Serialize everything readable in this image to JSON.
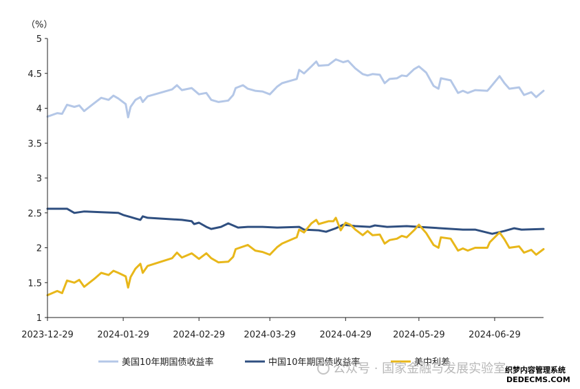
{
  "chart_data": {
    "type": "line",
    "title": "",
    "xlabel": "",
    "ylabel": "",
    "unit_label": "（%）",
    "ylim": [
      1,
      5
    ],
    "yticks": [
      "1",
      "1.5",
      "2",
      "2.5",
      "3",
      "3.5",
      "4",
      "4.5",
      "5"
    ],
    "x_range": [
      "2023-12-29",
      "2024-07-19"
    ],
    "xticks": [
      "2023-12-29",
      "2024-01-29",
      "2024-02-29",
      "2024-03-29",
      "2024-04-29",
      "2024-05-29",
      "2024-06-29"
    ],
    "grid": false,
    "legend_position": "bottom",
    "series": [
      {
        "name": "美国10年期国债收益率",
        "color": "#b4c7e7",
        "points": [
          [
            "2023-12-29",
            3.88
          ],
          [
            "2024-01-02",
            3.93
          ],
          [
            "2024-01-04",
            3.92
          ],
          [
            "2024-01-06",
            4.05
          ],
          [
            "2024-01-09",
            4.02
          ],
          [
            "2024-01-11",
            4.04
          ],
          [
            "2024-01-13",
            3.96
          ],
          [
            "2024-01-17",
            4.07
          ],
          [
            "2024-01-20",
            4.15
          ],
          [
            "2024-01-23",
            4.12
          ],
          [
            "2024-01-25",
            4.18
          ],
          [
            "2024-01-27",
            4.14
          ],
          [
            "2024-01-30",
            4.06
          ],
          [
            "2024-01-31",
            3.87
          ],
          [
            "2024-02-01",
            4.02
          ],
          [
            "2024-02-03",
            4.12
          ],
          [
            "2024-02-05",
            4.16
          ],
          [
            "2024-02-06",
            4.09
          ],
          [
            "2024-02-08",
            4.17
          ],
          [
            "2024-02-12",
            4.21
          ],
          [
            "2024-02-18",
            4.27
          ],
          [
            "2024-02-20",
            4.33
          ],
          [
            "2024-02-22",
            4.26
          ],
          [
            "2024-02-26",
            4.29
          ],
          [
            "2024-02-29",
            4.2
          ],
          [
            "2024-03-03",
            4.22
          ],
          [
            "2024-03-05",
            4.12
          ],
          [
            "2024-03-08",
            4.09
          ],
          [
            "2024-03-12",
            4.11
          ],
          [
            "2024-03-14",
            4.19
          ],
          [
            "2024-03-15",
            4.29
          ],
          [
            "2024-03-18",
            4.33
          ],
          [
            "2024-03-20",
            4.28
          ],
          [
            "2024-03-23",
            4.25
          ],
          [
            "2024-03-26",
            4.24
          ],
          [
            "2024-03-29",
            4.2
          ],
          [
            "2024-04-01",
            4.31
          ],
          [
            "2024-04-03",
            4.36
          ],
          [
            "2024-04-07",
            4.4
          ],
          [
            "2024-04-09",
            4.42
          ],
          [
            "2024-04-10",
            4.55
          ],
          [
            "2024-04-12",
            4.5
          ],
          [
            "2024-04-15",
            4.6
          ],
          [
            "2024-04-17",
            4.67
          ],
          [
            "2024-04-18",
            4.61
          ],
          [
            "2024-04-22",
            4.62
          ],
          [
            "2024-04-25",
            4.7
          ],
          [
            "2024-04-28",
            4.66
          ],
          [
            "2024-04-30",
            4.68
          ],
          [
            "2024-05-03",
            4.57
          ],
          [
            "2024-05-06",
            4.49
          ],
          [
            "2024-05-08",
            4.47
          ],
          [
            "2024-05-10",
            4.49
          ],
          [
            "2024-05-13",
            4.48
          ],
          [
            "2024-05-15",
            4.36
          ],
          [
            "2024-05-17",
            4.42
          ],
          [
            "2024-05-20",
            4.43
          ],
          [
            "2024-05-22",
            4.47
          ],
          [
            "2024-05-24",
            4.46
          ],
          [
            "2024-05-27",
            4.56
          ],
          [
            "2024-05-29",
            4.6
          ],
          [
            "2024-06-01",
            4.51
          ],
          [
            "2024-06-04",
            4.32
          ],
          [
            "2024-06-06",
            4.28
          ],
          [
            "2024-06-07",
            4.43
          ],
          [
            "2024-06-11",
            4.4
          ],
          [
            "2024-06-14",
            4.22
          ],
          [
            "2024-06-16",
            4.25
          ],
          [
            "2024-06-18",
            4.22
          ],
          [
            "2024-06-21",
            4.26
          ],
          [
            "2024-06-26",
            4.25
          ],
          [
            "2024-06-27",
            4.29
          ],
          [
            "2024-07-01",
            4.46
          ],
          [
            "2024-07-03",
            4.36
          ],
          [
            "2024-07-05",
            4.28
          ],
          [
            "2024-07-09",
            4.3
          ],
          [
            "2024-07-11",
            4.19
          ],
          [
            "2024-07-14",
            4.23
          ],
          [
            "2024-07-16",
            4.16
          ],
          [
            "2024-07-19",
            4.25
          ]
        ]
      },
      {
        "name": "中国10年期国债收益率",
        "color": "#2f4f80",
        "points": [
          [
            "2023-12-29",
            2.56
          ],
          [
            "2024-01-06",
            2.56
          ],
          [
            "2024-01-09",
            2.5
          ],
          [
            "2024-01-13",
            2.52
          ],
          [
            "2024-01-20",
            2.51
          ],
          [
            "2024-01-27",
            2.5
          ],
          [
            "2024-01-29",
            2.47
          ],
          [
            "2024-02-01",
            2.44
          ],
          [
            "2024-02-03",
            2.42
          ],
          [
            "2024-02-05",
            2.4
          ],
          [
            "2024-02-06",
            2.45
          ],
          [
            "2024-02-08",
            2.43
          ],
          [
            "2024-02-22",
            2.4
          ],
          [
            "2024-02-26",
            2.38
          ],
          [
            "2024-02-27",
            2.34
          ],
          [
            "2024-02-29",
            2.36
          ],
          [
            "2024-03-03",
            2.3
          ],
          [
            "2024-03-05",
            2.27
          ],
          [
            "2024-03-09",
            2.3
          ],
          [
            "2024-03-12",
            2.35
          ],
          [
            "2024-03-16",
            2.29
          ],
          [
            "2024-03-20",
            2.3
          ],
          [
            "2024-03-26",
            2.3
          ],
          [
            "2024-04-01",
            2.29
          ],
          [
            "2024-04-10",
            2.3
          ],
          [
            "2024-04-12",
            2.26
          ],
          [
            "2024-04-18",
            2.25
          ],
          [
            "2024-04-21",
            2.23
          ],
          [
            "2024-04-25",
            2.28
          ],
          [
            "2024-04-28",
            2.33
          ],
          [
            "2024-05-03",
            2.31
          ],
          [
            "2024-05-09",
            2.3
          ],
          [
            "2024-05-11",
            2.32
          ],
          [
            "2024-05-16",
            2.3
          ],
          [
            "2024-05-24",
            2.31
          ],
          [
            "2024-05-29",
            2.3
          ],
          [
            "2024-06-07",
            2.28
          ],
          [
            "2024-06-16",
            2.26
          ],
          [
            "2024-06-21",
            2.26
          ],
          [
            "2024-06-28",
            2.2
          ],
          [
            "2024-07-03",
            2.24
          ],
          [
            "2024-07-07",
            2.28
          ],
          [
            "2024-07-10",
            2.26
          ],
          [
            "2024-07-19",
            2.27
          ]
        ]
      },
      {
        "name": "美中利差",
        "color": "#e8b71a",
        "points": [
          [
            "2023-12-29",
            1.32
          ],
          [
            "2024-01-02",
            1.38
          ],
          [
            "2024-01-04",
            1.35
          ],
          [
            "2024-01-06",
            1.53
          ],
          [
            "2024-01-09",
            1.5
          ],
          [
            "2024-01-11",
            1.54
          ],
          [
            "2024-01-13",
            1.44
          ],
          [
            "2024-01-17",
            1.55
          ],
          [
            "2024-01-20",
            1.64
          ],
          [
            "2024-01-23",
            1.61
          ],
          [
            "2024-01-25",
            1.67
          ],
          [
            "2024-01-27",
            1.64
          ],
          [
            "2024-01-30",
            1.59
          ],
          [
            "2024-01-31",
            1.43
          ],
          [
            "2024-02-01",
            1.58
          ],
          [
            "2024-02-03",
            1.7
          ],
          [
            "2024-02-05",
            1.77
          ],
          [
            "2024-02-06",
            1.64
          ],
          [
            "2024-02-08",
            1.74
          ],
          [
            "2024-02-18",
            1.85
          ],
          [
            "2024-02-20",
            1.93
          ],
          [
            "2024-02-22",
            1.86
          ],
          [
            "2024-02-26",
            1.92
          ],
          [
            "2024-02-29",
            1.84
          ],
          [
            "2024-03-03",
            1.92
          ],
          [
            "2024-03-05",
            1.85
          ],
          [
            "2024-03-08",
            1.79
          ],
          [
            "2024-03-12",
            1.8
          ],
          [
            "2024-03-14",
            1.87
          ],
          [
            "2024-03-15",
            1.98
          ],
          [
            "2024-03-20",
            2.04
          ],
          [
            "2024-03-23",
            1.96
          ],
          [
            "2024-03-26",
            1.94
          ],
          [
            "2024-03-29",
            1.9
          ],
          [
            "2024-04-01",
            2.01
          ],
          [
            "2024-04-03",
            2.06
          ],
          [
            "2024-04-07",
            2.12
          ],
          [
            "2024-04-09",
            2.15
          ],
          [
            "2024-04-10",
            2.26
          ],
          [
            "2024-04-12",
            2.22
          ],
          [
            "2024-04-15",
            2.35
          ],
          [
            "2024-04-17",
            2.4
          ],
          [
            "2024-04-18",
            2.34
          ],
          [
            "2024-04-22",
            2.38
          ],
          [
            "2024-04-24",
            2.38
          ],
          [
            "2024-04-25",
            2.43
          ],
          [
            "2024-04-27",
            2.25
          ],
          [
            "2024-04-29",
            2.36
          ],
          [
            "2024-05-01",
            2.33
          ],
          [
            "2024-05-03",
            2.26
          ],
          [
            "2024-05-06",
            2.18
          ],
          [
            "2024-05-08",
            2.24
          ],
          [
            "2024-05-10",
            2.18
          ],
          [
            "2024-05-13",
            2.19
          ],
          [
            "2024-05-15",
            2.06
          ],
          [
            "2024-05-17",
            2.11
          ],
          [
            "2024-05-20",
            2.13
          ],
          [
            "2024-05-22",
            2.17
          ],
          [
            "2024-05-24",
            2.15
          ],
          [
            "2024-05-27",
            2.25
          ],
          [
            "2024-05-29",
            2.33
          ],
          [
            "2024-06-01",
            2.21
          ],
          [
            "2024-06-04",
            2.04
          ],
          [
            "2024-06-06",
            2.0
          ],
          [
            "2024-06-07",
            2.15
          ],
          [
            "2024-06-11",
            2.13
          ],
          [
            "2024-06-14",
            1.96
          ],
          [
            "2024-06-16",
            1.99
          ],
          [
            "2024-06-18",
            1.96
          ],
          [
            "2024-06-21",
            2.0
          ],
          [
            "2024-06-26",
            2.0
          ],
          [
            "2024-06-27",
            2.08
          ],
          [
            "2024-07-01",
            2.22
          ],
          [
            "2024-07-03",
            2.12
          ],
          [
            "2024-07-05",
            2.0
          ],
          [
            "2024-07-09",
            2.02
          ],
          [
            "2024-07-11",
            1.93
          ],
          [
            "2024-07-14",
            1.97
          ],
          [
            "2024-07-16",
            1.9
          ],
          [
            "2024-07-19",
            1.98
          ]
        ]
      }
    ]
  },
  "watermark": {
    "text": "公众号 · 国家金融与发展实验室"
  },
  "corner_mark": {
    "line1": "织梦内容管理系统",
    "line2": "DEDECMS.COM"
  }
}
